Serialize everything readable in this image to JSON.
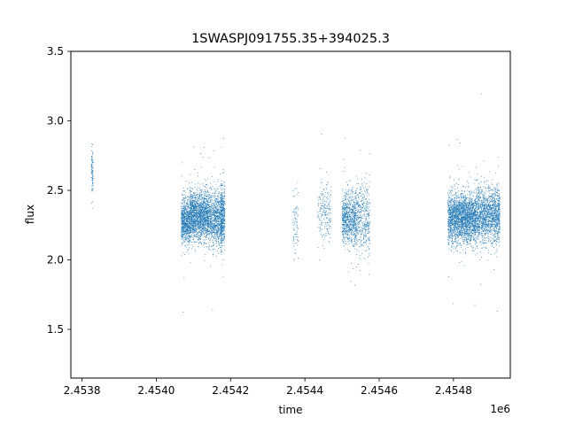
{
  "chart_data": {
    "type": "scatter",
    "title": "1SWASPJ091755.35+394025.3",
    "xlabel": "time",
    "ylabel": "flux",
    "x_offset_label": "1e6",
    "xlim": [
      2453770,
      2454953
    ],
    "ylim": [
      1.15,
      3.5
    ],
    "x_ticks": [
      2453800,
      2454000,
      2454200,
      2454400,
      2454600,
      2454800
    ],
    "x_tick_labels": [
      "2.4538",
      "2.4540",
      "2.4542",
      "2.4544",
      "2.4546",
      "2.4548"
    ],
    "y_ticks": [
      1.5,
      2.0,
      2.5,
      3.0,
      3.5
    ],
    "y_tick_labels": [
      "1.5",
      "2.0",
      "2.5",
      "3.0",
      "3.5"
    ],
    "grid": false,
    "legend": "none",
    "marker_color": "#1f77b4",
    "series": [
      {
        "clusters": [
          {
            "x_range": [
              2453825,
              2453830
            ],
            "center": 2.62,
            "spread": 0.22,
            "points": 90
          },
          {
            "x_range": [
              2454067,
              2454090
            ],
            "center": 2.28,
            "spread": 0.17,
            "points": 700
          },
          {
            "x_range": [
              2454090,
              2454140
            ],
            "center": 2.32,
            "spread": 0.18,
            "points": 1600
          },
          {
            "x_range": [
              2454140,
              2454178
            ],
            "center": 2.3,
            "spread": 0.2,
            "points": 900
          },
          {
            "x_range": [
              2454174,
              2454185
            ],
            "center": 2.32,
            "spread": 0.22,
            "points": 350
          },
          {
            "x_range": [
              2454368,
              2454382
            ],
            "center": 2.25,
            "spread": 0.24,
            "points": 80
          },
          {
            "x_range": [
              2454435,
              2454470
            ],
            "center": 2.35,
            "spread": 0.22,
            "points": 200
          },
          {
            "x_range": [
              2454500,
              2454540
            ],
            "center": 2.3,
            "spread": 0.2,
            "points": 800
          },
          {
            "x_range": [
              2454540,
              2454575
            ],
            "center": 2.3,
            "spread": 0.24,
            "points": 400
          },
          {
            "x_range": [
              2454785,
              2454860
            ],
            "center": 2.3,
            "spread": 0.18,
            "points": 2200
          },
          {
            "x_range": [
              2454860,
              2454925
            ],
            "center": 2.32,
            "spread": 0.2,
            "points": 1500
          }
        ]
      }
    ]
  }
}
